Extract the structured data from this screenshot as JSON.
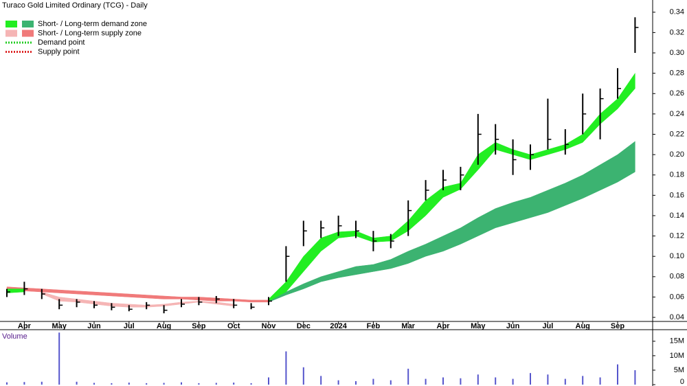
{
  "chart_data": [
    {
      "type": "candlestick",
      "title": "Turaco Gold Limited Ordinary (TCG) - Daily",
      "categories": [
        null,
        "Apr",
        null,
        "May",
        null,
        "Jun",
        null,
        "Jul",
        null,
        "Aug",
        null,
        "Sep",
        null,
        "Oct",
        null,
        "Nov",
        null,
        "Dec",
        null,
        "2024",
        null,
        "Feb",
        null,
        "Mar",
        null,
        "Apr",
        null,
        "May",
        null,
        "Jun",
        null,
        "Jul",
        null,
        "Aug",
        null,
        "Sep",
        null
      ],
      "candles": {
        "color": "#000000",
        "high": [
          0.068,
          0.075,
          0.068,
          0.058,
          0.058,
          0.056,
          0.054,
          0.052,
          0.055,
          0.052,
          0.058,
          0.06,
          0.061,
          0.058,
          0.054,
          0.06,
          0.11,
          0.135,
          0.135,
          0.14,
          0.135,
          0.125,
          0.122,
          0.155,
          0.175,
          0.185,
          0.188,
          0.24,
          0.23,
          0.215,
          0.21,
          0.255,
          0.225,
          0.26,
          0.265,
          0.285,
          0.335
        ],
        "low": [
          0.06,
          0.062,
          0.058,
          0.048,
          0.05,
          0.049,
          0.047,
          0.046,
          0.048,
          0.044,
          0.05,
          0.052,
          0.054,
          0.049,
          0.048,
          0.052,
          0.075,
          0.11,
          0.118,
          0.12,
          0.118,
          0.105,
          0.108,
          0.12,
          0.155,
          0.165,
          0.165,
          0.19,
          0.2,
          0.18,
          0.185,
          0.205,
          0.2,
          0.22,
          0.215,
          0.255,
          0.3
        ],
        "close": [
          0.065,
          0.068,
          0.063,
          0.052,
          0.055,
          0.052,
          0.05,
          0.048,
          0.052,
          0.047,
          0.053,
          0.055,
          0.058,
          0.052,
          0.05,
          0.056,
          0.1,
          0.125,
          0.128,
          0.13,
          0.125,
          0.115,
          0.115,
          0.145,
          0.165,
          0.175,
          0.18,
          0.22,
          0.215,
          0.195,
          0.2,
          0.215,
          0.21,
          0.24,
          0.255,
          0.265,
          0.325
        ]
      },
      "zones": [
        {
          "color": "#f07a7a",
          "upper": [
            0.07,
            0.069,
            0.068,
            0.067,
            0.066,
            0.065,
            0.064,
            0.063,
            0.062,
            0.061,
            0.06,
            0.06,
            0.059,
            0.058,
            0.057,
            0.057,
            null,
            null,
            null,
            null,
            null,
            null,
            null,
            null,
            null,
            null,
            null,
            null,
            null,
            null,
            null,
            null,
            null,
            null,
            null,
            null,
            null
          ],
          "lower": [
            0.066,
            0.066,
            0.065,
            0.064,
            0.063,
            0.062,
            0.061,
            0.06,
            0.059,
            0.058,
            0.058,
            0.057,
            0.056,
            0.056,
            0.055,
            0.055,
            null,
            null,
            null,
            null,
            null,
            null,
            null,
            null,
            null,
            null,
            null,
            null,
            null,
            null,
            null,
            null,
            null,
            null,
            null,
            null,
            null
          ]
        },
        {
          "color": "#f5b5b5",
          "upper": [
            null,
            null,
            0.065,
            0.06,
            0.058,
            0.056,
            0.054,
            0.053,
            0.052,
            0.053,
            0.055,
            0.056,
            0.055,
            0.053,
            null,
            null,
            null,
            null,
            null,
            null,
            null,
            null,
            null,
            null,
            null,
            null,
            null,
            null,
            null,
            null,
            null,
            null,
            null,
            null,
            null,
            null,
            null
          ],
          "lower": [
            null,
            null,
            0.063,
            0.056,
            0.055,
            0.053,
            0.051,
            0.05,
            0.05,
            0.051,
            0.053,
            0.055,
            0.053,
            0.051,
            null,
            null,
            null,
            null,
            null,
            null,
            null,
            null,
            null,
            null,
            null,
            null,
            null,
            null,
            null,
            null,
            null,
            null,
            null,
            null,
            null,
            null,
            null
          ]
        },
        {
          "color": "#3cb371",
          "upper": [
            null,
            null,
            null,
            null,
            null,
            null,
            null,
            null,
            null,
            null,
            null,
            null,
            null,
            null,
            null,
            0.057,
            0.065,
            0.073,
            0.08,
            0.085,
            0.09,
            0.092,
            0.097,
            0.105,
            0.112,
            0.12,
            0.128,
            0.138,
            0.147,
            0.153,
            0.158,
            0.165,
            0.172,
            0.18,
            0.19,
            0.2,
            0.213
          ],
          "lower": [
            null,
            null,
            null,
            null,
            null,
            null,
            null,
            null,
            null,
            null,
            null,
            null,
            null,
            null,
            null,
            0.055,
            0.062,
            0.068,
            0.075,
            0.079,
            0.082,
            0.085,
            0.088,
            0.093,
            0.1,
            0.105,
            0.112,
            0.12,
            0.128,
            0.133,
            0.138,
            0.143,
            0.15,
            0.157,
            0.165,
            0.173,
            0.183
          ]
        },
        {
          "color": "#22ee22",
          "upper": [
            0.068,
            0.068,
            null,
            null,
            null,
            null,
            null,
            null,
            null,
            null,
            null,
            null,
            null,
            null,
            null,
            0.058,
            0.075,
            0.1,
            0.118,
            0.124,
            0.125,
            0.118,
            0.12,
            0.135,
            0.155,
            0.168,
            0.172,
            0.2,
            0.212,
            0.205,
            0.2,
            0.205,
            0.21,
            0.22,
            0.24,
            0.255,
            0.28
          ],
          "lower": [
            0.064,
            0.065,
            null,
            null,
            null,
            null,
            null,
            null,
            null,
            null,
            null,
            null,
            null,
            null,
            null,
            0.056,
            0.065,
            0.085,
            0.105,
            0.118,
            0.12,
            0.114,
            0.115,
            0.125,
            0.14,
            0.158,
            0.166,
            0.185,
            0.205,
            0.2,
            0.195,
            0.2,
            0.205,
            0.212,
            0.23,
            0.245,
            0.265
          ]
        }
      ],
      "legend": [
        {
          "label": "Short- / Long-term demand zone",
          "colors": [
            "#22ee22",
            "#3cb371"
          ]
        },
        {
          "label": "Short- / Long-term supply zone",
          "colors": [
            "#f5b5b5",
            "#f07a7a"
          ]
        },
        {
          "label": "Demand point",
          "colors": [
            "#22cc22"
          ]
        },
        {
          "label": "Supply point",
          "colors": [
            "#dd2222"
          ]
        }
      ],
      "ylim": [
        0.036,
        0.352
      ],
      "yticks": [
        0.04,
        0.06,
        0.08,
        {
          "value": 0.1,
          "label": "0.10"
        },
        0.12,
        0.14,
        0.16,
        0.18,
        {
          "value": 0.2,
          "label": "0.20"
        },
        0.22,
        0.24,
        0.26,
        0.28,
        {
          "value": 0.3,
          "label": "0.30"
        },
        0.32,
        0.34
      ]
    },
    {
      "type": "bar",
      "title": "Volume",
      "color": "#5555cc",
      "values": [
        800000,
        900000,
        1000000,
        18000000,
        1000000,
        600000,
        500000,
        700000,
        500000,
        600000,
        800000,
        500000,
        600000,
        700000,
        500000,
        2500000,
        11500000,
        6000000,
        3000000,
        1500000,
        1200000,
        2000000,
        1500000,
        5500000,
        2000000,
        2500000,
        2200000,
        3500000,
        2500000,
        2000000,
        4000000,
        3500000,
        2000000,
        3000000,
        2500000,
        7000000,
        5000000
      ],
      "ylim": [
        0,
        19000000
      ],
      "yticks": [
        0,
        {
          "value": 5000000,
          "label": "5M"
        },
        {
          "value": 10000000,
          "label": "10M"
        },
        {
          "value": 15000000,
          "label": "15M"
        }
      ]
    }
  ]
}
